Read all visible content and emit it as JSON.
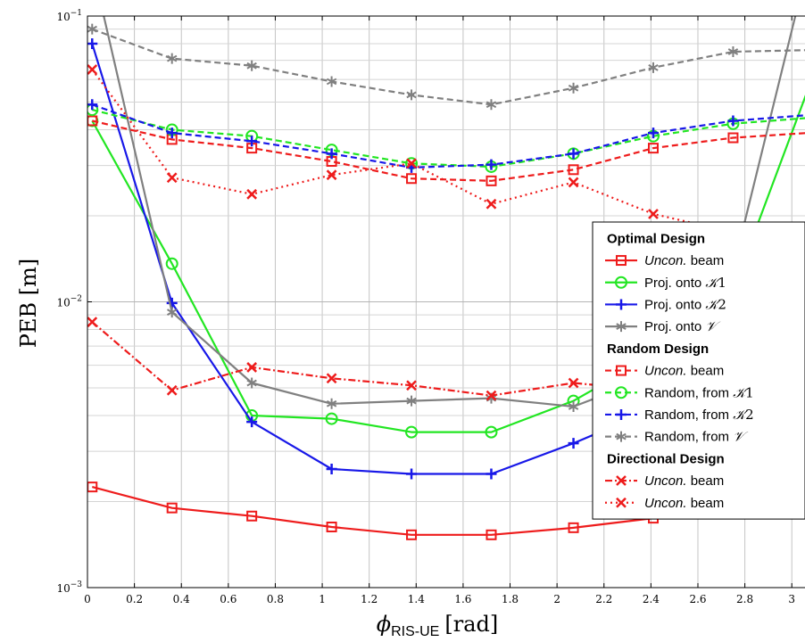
{
  "chart_data": {
    "type": "line",
    "xlabel": "ϕRIS-UE [rad]",
    "xlabel_parts": {
      "phi": "ϕ",
      "sub": "RIS-UE",
      "unit": "[rad]"
    },
    "ylabel": "PEB [m]",
    "xlim": [
      0,
      3.06
    ],
    "ylim": [
      0.001,
      0.1
    ],
    "yscale": "log",
    "grid": true,
    "legend_position": "right",
    "x_ticks": [
      "0",
      "0.2",
      "0.4",
      "0.6",
      "0.8",
      "1",
      "1.2",
      "1.4",
      "1.6",
      "1.8",
      "2",
      "2.2",
      "2.4",
      "2.6",
      "2.8",
      "3"
    ],
    "y_ticks": [
      "10−3",
      "10−2",
      "10−1"
    ],
    "x": [
      0.02,
      0.36,
      0.7,
      1.04,
      1.38,
      1.72,
      2.07,
      2.41,
      2.75
    ],
    "series": [
      {
        "group": "Optimal Design",
        "name": "Uncon. beam",
        "color": "#ee1c1c",
        "dash": "solid",
        "marker": "square",
        "values": [
          0.00225,
          0.0019,
          0.00178,
          0.00163,
          0.00153,
          0.00153,
          0.00162,
          0.00175,
          0.00185
        ],
        "end_value": 0.0019
      },
      {
        "group": "Optimal Design",
        "name": "Proj. onto K1",
        "color": "#22e622",
        "dash": "solid",
        "marker": "circle",
        "values": [
          0.043,
          0.0136,
          0.004,
          0.0039,
          0.0035,
          0.0035,
          0.0045,
          0.0065,
          0.011
        ],
        "end_value": 0.055
      },
      {
        "group": "Optimal Design",
        "name": "Proj. onto K2",
        "color": "#1818e8",
        "dash": "solid",
        "marker": "plus",
        "values": [
          0.08,
          0.0099,
          0.0038,
          0.0026,
          0.0025,
          0.0025,
          0.0032,
          0.0042,
          0.0075
        ],
        "end_value": 0.016
      },
      {
        "group": "Optimal Design",
        "name": "Proj. onto V",
        "color": "#808080",
        "dash": "solid",
        "marker": "asterisk",
        "values": [
          0.15,
          0.0092,
          0.0052,
          0.0044,
          0.0045,
          0.0046,
          0.0043,
          0.0055,
          0.013
        ],
        "end_value": 0.15
      },
      {
        "group": "Random Design",
        "name": "Uncon. beam",
        "color": "#ee1c1c",
        "dash": "dashed",
        "marker": "square",
        "values": [
          0.043,
          0.037,
          0.0345,
          0.031,
          0.027,
          0.0265,
          0.029,
          0.0345,
          0.0375
        ],
        "end_value": 0.039
      },
      {
        "group": "Random Design",
        "name": "Random, from K1",
        "color": "#22e622",
        "dash": "dashed",
        "marker": "circle",
        "values": [
          0.047,
          0.04,
          0.038,
          0.034,
          0.0305,
          0.0297,
          0.033,
          0.038,
          0.042
        ],
        "end_value": 0.044
      },
      {
        "group": "Random Design",
        "name": "Random, from K2",
        "color": "#1818e8",
        "dash": "dashed",
        "marker": "plus",
        "values": [
          0.049,
          0.039,
          0.0365,
          0.033,
          0.0295,
          0.0302,
          0.033,
          0.039,
          0.043
        ],
        "end_value": 0.045
      },
      {
        "group": "Random Design",
        "name": "Random, from V",
        "color": "#808080",
        "dash": "dashed",
        "marker": "asterisk",
        "values": [
          0.09,
          0.071,
          0.067,
          0.059,
          0.053,
          0.049,
          0.056,
          0.066,
          0.075
        ],
        "end_value": 0.076
      },
      {
        "group": "Directional Design",
        "name": "Uncon. beam",
        "color": "#ee1c1c",
        "dash": "dashdot",
        "marker": "x",
        "values": [
          0.0085,
          0.0049,
          0.0059,
          0.0054,
          0.0051,
          0.0047,
          0.0052,
          0.0049,
          0.0045
        ],
        "end_value": 0.0042
      },
      {
        "group": "Directional Design",
        "name": "Uncon. beam",
        "color": "#ee1c1c",
        "dash": "dotted",
        "marker": "x",
        "values": [
          0.065,
          0.0272,
          0.0238,
          0.0278,
          0.0305,
          0.022,
          0.0262,
          0.0203,
          0.0175
        ],
        "end_value": 0.0155
      }
    ]
  },
  "legend": {
    "groups": [
      {
        "title": "Optimal Design",
        "items": [
          {
            "series": 0,
            "label_italic": "Uncon.",
            "label": " beam"
          },
          {
            "series": 1,
            "label_italic": "",
            "label": "Proj. onto ",
            "math": "𝒦",
            "math_sub": "1"
          },
          {
            "series": 2,
            "label_italic": "",
            "label": "Proj. onto ",
            "math": "𝒦",
            "math_sub": "2"
          },
          {
            "series": 3,
            "label_italic": "",
            "label": "Proj. onto ",
            "math": "𝒱",
            "math_sub": ""
          }
        ]
      },
      {
        "title": "Random Design",
        "items": [
          {
            "series": 4,
            "label_italic": "Uncon.",
            "label": " beam"
          },
          {
            "series": 5,
            "label_italic": "",
            "label": "Random, from ",
            "math": "𝒦",
            "math_sub": "1"
          },
          {
            "series": 6,
            "label_italic": "",
            "label": "Random, from ",
            "math": "𝒦",
            "math_sub": "2"
          },
          {
            "series": 7,
            "label_italic": "",
            "label": "Random, from ",
            "math": "𝒱",
            "math_sub": ""
          }
        ]
      },
      {
        "title": "Directional Design",
        "items": [
          {
            "series": 8,
            "label_italic": "Uncon.",
            "label": " beam"
          },
          {
            "series": 9,
            "label_italic": "Uncon.",
            "label": " beam"
          }
        ]
      }
    ]
  }
}
